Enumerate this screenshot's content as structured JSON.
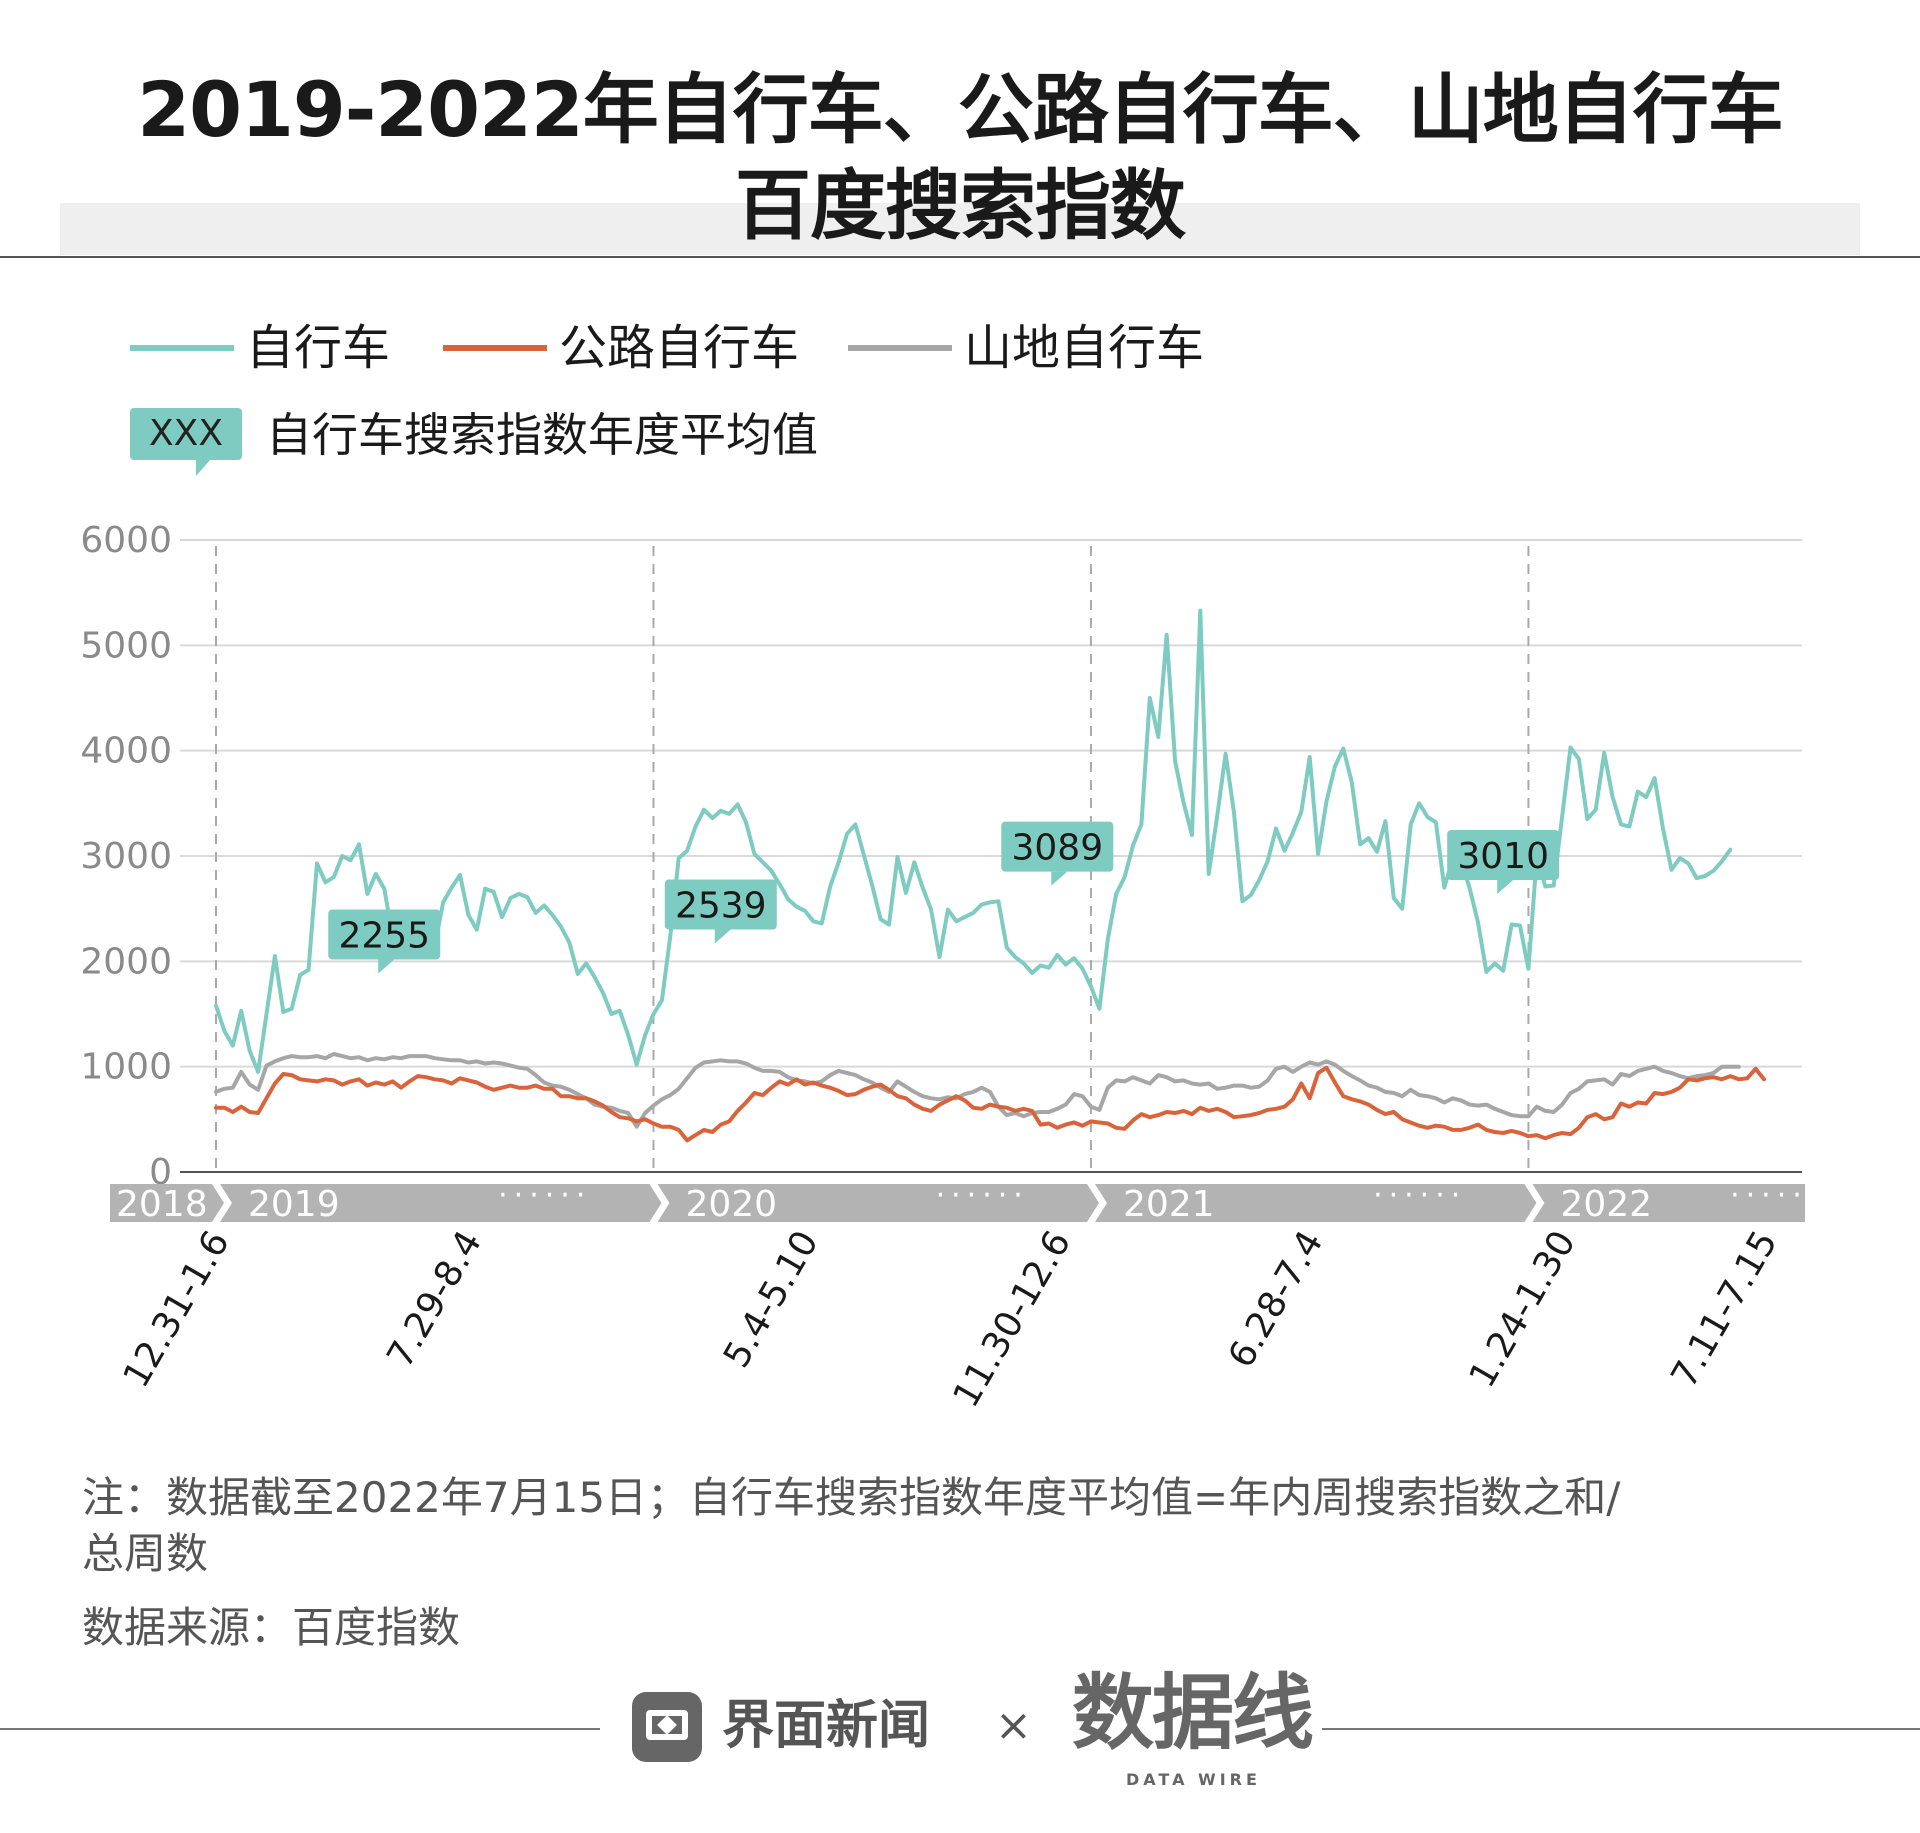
{
  "header": {
    "title_line1": "2019-2022年自行车、公路自行车、山地自行车",
    "title_line2": "百度搜索指数"
  },
  "legend": {
    "avg_box": "XXX",
    "avg_label": "自行车搜索指数年度平均值"
  },
  "colors": {
    "bicycle": "#7ecbc2",
    "road": "#d9643b",
    "mountain": "#a6a6a6",
    "grid": "#d9d9d9",
    "axis_band": "#b3b3b3",
    "label_box": "#7ecbc2"
  },
  "chart_data": {
    "type": "line",
    "y_ticks": [
      "0",
      "1000",
      "2000",
      "3000",
      "4000",
      "5000",
      "6000"
    ],
    "ylim": [
      0,
      6000
    ],
    "grid": true,
    "legend_position": "top-left",
    "year_band": [
      "2018",
      "2019",
      "2020",
      "2021",
      "2022"
    ],
    "year_band_dots": "······",
    "x_tick_labels": [
      "12.31-1.6",
      "7.29-8.4",
      "5.4-5.10",
      "11.30-12.6",
      "6.28-7.4",
      "1.24-1.30",
      "7.11-7.15"
    ],
    "x_tick_weeks": [
      0,
      30,
      70,
      100,
      130,
      160,
      184
    ],
    "year_start_weeks": [
      0,
      52,
      104,
      156
    ],
    "week_count": 185,
    "series": [
      {
        "name": "自行车",
        "key": "bicycle",
        "values": [
          1580,
          1340,
          1200,
          1530,
          1150,
          950,
          1500,
          2050,
          1520,
          1550,
          1870,
          1920,
          2930,
          2750,
          2800,
          3000,
          2960,
          3110,
          2640,
          2830,
          2690,
          2230,
          2420,
          2220,
          2200,
          2400,
          2150,
          2560,
          2700,
          2820,
          2440,
          2300,
          2690,
          2660,
          2420,
          2600,
          2640,
          2610,
          2460,
          2530,
          2440,
          2330,
          2180,
          1880,
          1980,
          1850,
          1700,
          1500,
          1530,
          1300,
          1020,
          1300,
          1500,
          1630,
          2240,
          2980,
          3050,
          3280,
          3440,
          3360,
          3430,
          3400,
          3490,
          3320,
          3020,
          2940,
          2860,
          2730,
          2590,
          2520,
          2480,
          2380,
          2360,
          2710,
          2940,
          3210,
          3300,
          3010,
          2720,
          2400,
          2350,
          2990,
          2650,
          2940,
          2700,
          2490,
          2040,
          2490,
          2380,
          2420,
          2460,
          2540,
          2560,
          2570,
          2130,
          2040,
          1980,
          1890,
          1960,
          1940,
          2060,
          1970,
          2030,
          1930,
          1760,
          1550,
          2210,
          2640,
          2800,
          3100,
          3300,
          4500,
          4130,
          5100,
          3900,
          3510,
          3200,
          5330,
          2830,
          3380,
          3970,
          3410,
          2570,
          2630,
          2770,
          2950,
          3260,
          3050,
          3220,
          3420,
          3940,
          3020,
          3520,
          3850,
          4020,
          3700,
          3110,
          3170,
          3040,
          3330,
          2600,
          2500,
          3300,
          3500,
          3370,
          3320,
          2700,
          2970,
          2950,
          2700,
          2370,
          1900,
          1980,
          1910,
          2350,
          2340,
          1930,
          2990,
          2710,
          2720,
          3370,
          4030,
          3920,
          3350,
          3440,
          3980,
          3560,
          3300,
          3280,
          3610,
          3560,
          3740,
          3260,
          2870,
          2980,
          2930,
          2790,
          2810,
          2860,
          2950,
          3060
        ]
      },
      {
        "name": "公路自行车",
        "key": "road",
        "values": [
          610,
          610,
          570,
          620,
          570,
          560,
          700,
          840,
          930,
          920,
          880,
          870,
          860,
          880,
          870,
          830,
          860,
          880,
          820,
          850,
          830,
          860,
          800,
          860,
          910,
          900,
          880,
          870,
          840,
          890,
          870,
          850,
          810,
          780,
          800,
          820,
          800,
          800,
          820,
          790,
          790,
          720,
          720,
          700,
          700,
          670,
          630,
          570,
          520,
          510,
          480,
          500,
          460,
          430,
          430,
          400,
          300,
          350,
          400,
          380,
          450,
          480,
          580,
          660,
          750,
          730,
          800,
          860,
          830,
          880,
          830,
          850,
          820,
          800,
          770,
          730,
          740,
          780,
          810,
          830,
          780,
          720,
          700,
          640,
          600,
          580,
          640,
          680,
          720,
          680,
          610,
          600,
          640,
          620,
          610,
          580,
          600,
          580,
          450,
          460,
          420,
          450,
          470,
          440,
          480,
          470,
          460,
          420,
          410,
          490,
          550,
          520,
          540,
          570,
          560,
          580,
          550,
          610,
          580,
          600,
          570,
          520,
          530,
          540,
          560,
          590,
          600,
          620,
          690,
          840,
          700,
          940,
          990,
          850,
          720,
          690,
          670,
          640,
          590,
          550,
          570,
          500,
          470,
          440,
          420,
          440,
          430,
          400,
          400,
          420,
          450,
          400,
          380,
          370,
          390,
          370,
          340,
          350,
          320,
          350,
          370,
          360,
          420,
          520,
          550,
          500,
          520,
          650,
          620,
          660,
          650,
          750,
          740,
          760,
          800,
          880,
          870,
          890,
          900,
          880,
          910,
          880,
          890,
          980,
          880
        ]
      },
      {
        "name": "山地自行车",
        "key": "mountain",
        "values": [
          760,
          790,
          800,
          950,
          830,
          780,
          1010,
          1050,
          1080,
          1100,
          1090,
          1090,
          1100,
          1080,
          1120,
          1100,
          1080,
          1090,
          1060,
          1080,
          1070,
          1090,
          1080,
          1100,
          1100,
          1100,
          1080,
          1070,
          1060,
          1060,
          1040,
          1050,
          1030,
          1040,
          1030,
          1010,
          990,
          980,
          920,
          850,
          820,
          810,
          780,
          740,
          700,
          640,
          620,
          610,
          580,
          560,
          430,
          560,
          630,
          690,
          730,
          790,
          890,
          990,
          1040,
          1050,
          1060,
          1050,
          1050,
          1030,
          990,
          960,
          960,
          950,
          900,
          870,
          860,
          840,
          860,
          920,
          960,
          940,
          920,
          880,
          850,
          800,
          760,
          860,
          810,
          760,
          720,
          700,
          690,
          710,
          700,
          740,
          760,
          800,
          760,
          620,
          540,
          560,
          530,
          560,
          570,
          570,
          600,
          640,
          740,
          720,
          620,
          590,
          800,
          870,
          860,
          900,
          870,
          840,
          920,
          900,
          860,
          870,
          840,
          830,
          840,
          790,
          800,
          820,
          820,
          800,
          810,
          870,
          980,
          1000,
          950,
          1000,
          1040,
          1020,
          1050,
          1020,
          960,
          910,
          870,
          820,
          800,
          760,
          750,
          720,
          780,
          730,
          720,
          700,
          660,
          700,
          680,
          640,
          630,
          640,
          600,
          570,
          540,
          530,
          530,
          620,
          580,
          570,
          640,
          750,
          790,
          860,
          870,
          880,
          830,
          930,
          910,
          960,
          980,
          1000,
          960,
          940,
          910,
          890,
          910,
          920,
          940,
          1000,
          1000,
          1000
        ]
      }
    ],
    "annotations": [
      {
        "label": "2255",
        "week": 20,
        "value": 2255
      },
      {
        "label": "2539",
        "week": 60,
        "value": 2539
      },
      {
        "label": "3089",
        "week": 100,
        "value": 3089
      },
      {
        "label": "3010",
        "week": 153,
        "value": 3010
      }
    ]
  },
  "notes": {
    "note_line1": "注：数据截至2022年7月15日；自行车搜索指数年度平均值=年内周搜索指数之和/",
    "note_line2": "总周数",
    "source": "数据来源：百度指数"
  },
  "footer": {
    "brand1": "界面新闻",
    "times": "×",
    "brand2": "数据线",
    "brand2_sub": "DATA WIRE"
  }
}
